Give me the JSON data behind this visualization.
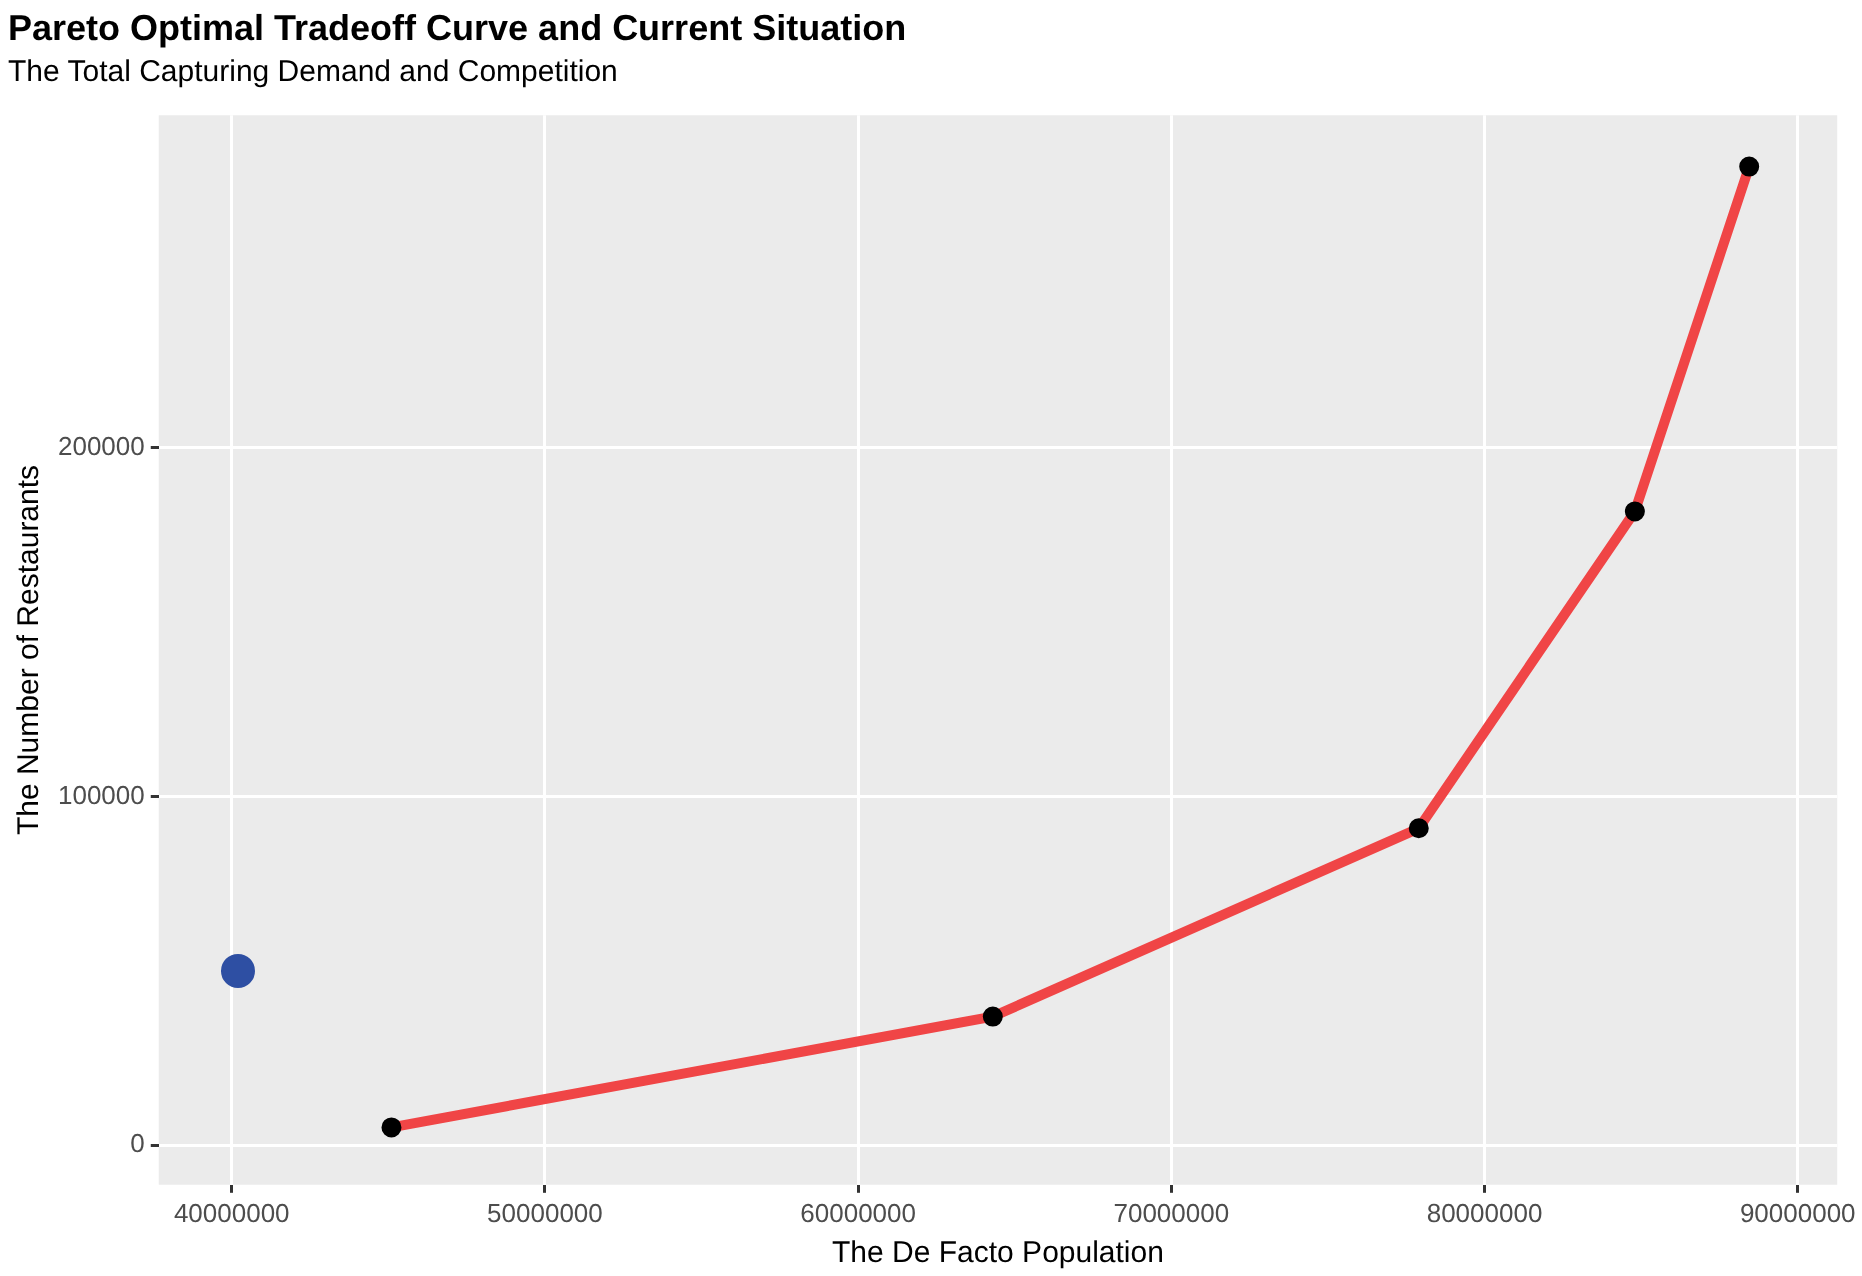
{
  "chart_data": {
    "type": "line",
    "title": "Pareto Optimal Tradeoff Curve and Current Situation",
    "subtitle": "The Total Capturing Demand and Competition",
    "xlabel": "The De Facto Population",
    "ylabel": "The Number of Restaurants",
    "series": [
      {
        "type": "line",
        "color": "#f04546",
        "marker": "none",
        "x": [
          45100000,
          64300000,
          77900000,
          84800000,
          88450000
        ],
        "values": [
          5100,
          36900,
          90900,
          181800,
          280700
        ]
      },
      {
        "type": "scatter",
        "color": "#000000",
        "marker": "circle",
        "x": [
          45100000,
          64300000,
          77900000,
          84800000,
          88450000
        ],
        "values": [
          5100,
          36900,
          90900,
          181800,
          280700
        ]
      },
      {
        "type": "scatter",
        "color": "#2e4fa3",
        "marker": "circle",
        "x": [
          40200000
        ],
        "values": [
          50000
        ]
      }
    ],
    "xlim": [
      37670000,
      91260000
    ],
    "ylim": [
      -11360,
      295450
    ],
    "xticks": [
      40000000,
      50000000,
      60000000,
      70000000,
      80000000,
      90000000
    ],
    "yticks": [
      0,
      100000,
      200000
    ],
    "grid": true,
    "legend": false
  }
}
